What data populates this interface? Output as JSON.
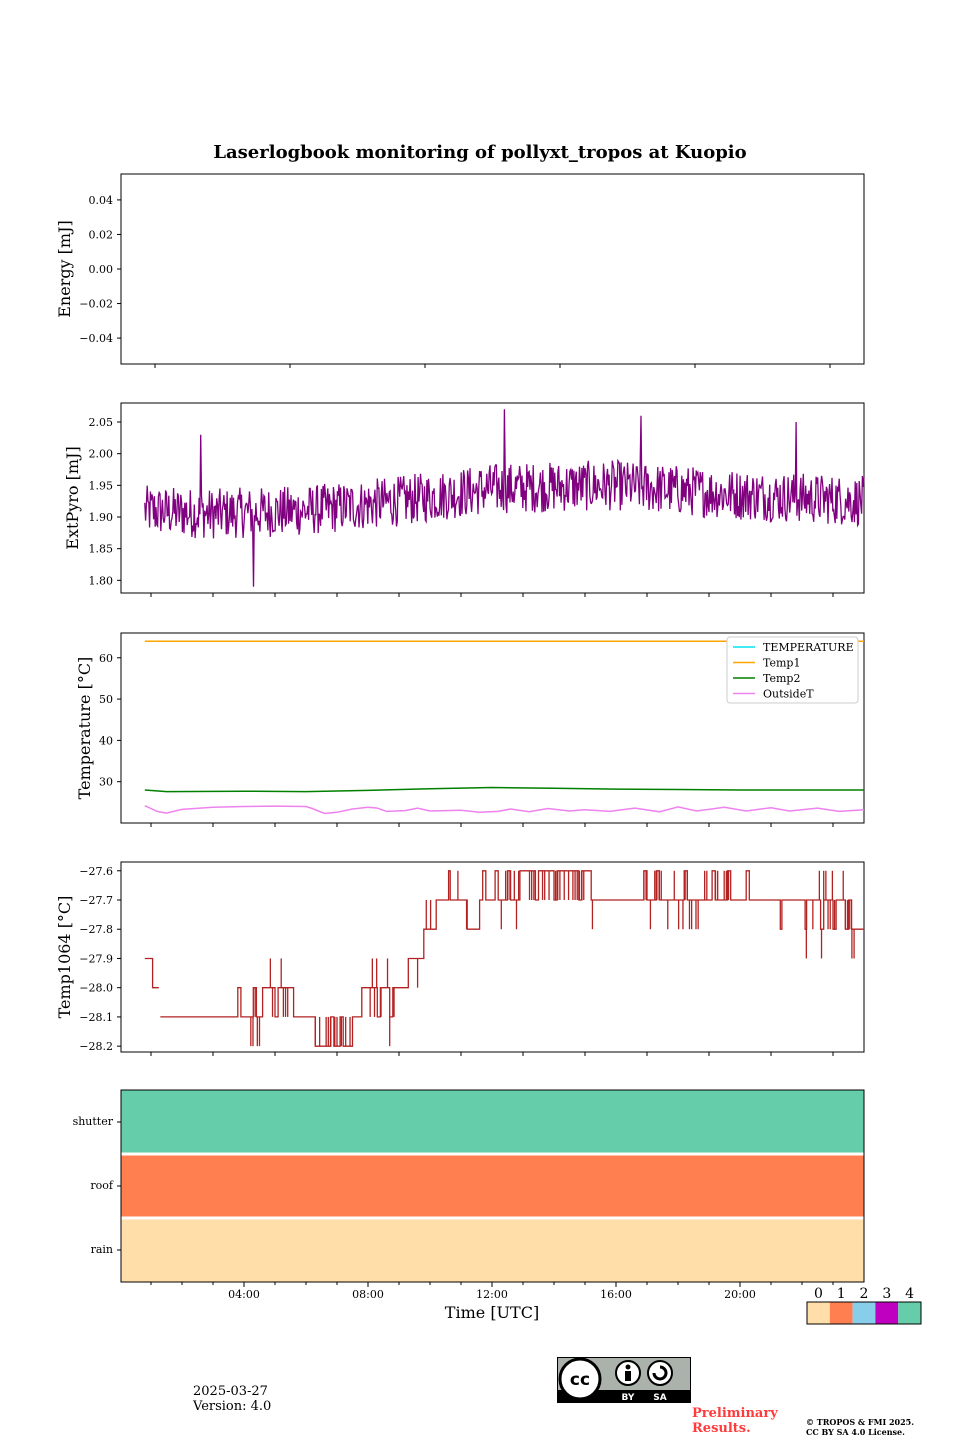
{
  "chart_data": [
    {
      "type": "line",
      "title": "Laserlogbook monitoring of pollyxt_tropos at Kuopio",
      "ylabel": "Energy [mJ]",
      "ylim": [
        -0.055,
        0.055
      ],
      "yticks": [
        -0.04,
        -0.02,
        0.0,
        0.02,
        0.04
      ],
      "yticklabels": [
        "−0.04",
        "−0.02",
        "0.00",
        "0.02",
        "0.04"
      ],
      "series": []
    },
    {
      "type": "line",
      "ylabel": "ExtPyro [mJ]",
      "ylim": [
        1.78,
        2.08
      ],
      "yticks": [
        1.8,
        1.85,
        1.9,
        1.95,
        2.0,
        2.05
      ],
      "yticklabels": [
        "1.80",
        "1.85",
        "1.90",
        "1.95",
        "2.00",
        "2.05"
      ],
      "x_range_hours": [
        0.8,
        24.0
      ],
      "series": [
        {
          "color": "#800080",
          "trend": [
            [
              0.8,
              1.91
            ],
            [
              3.0,
              1.905
            ],
            [
              6.0,
              1.91
            ],
            [
              9.0,
              1.925
            ],
            [
              12.0,
              1.945
            ],
            [
              16.0,
              1.95
            ],
            [
              20.0,
              1.935
            ],
            [
              24.0,
              1.925
            ]
          ],
          "noise": 0.04,
          "spikes": [
            [
              12.4,
              2.07
            ],
            [
              4.3,
              1.79
            ],
            [
              16.8,
              2.06
            ],
            [
              2.6,
              2.03
            ],
            [
              21.8,
              2.05
            ]
          ]
        }
      ]
    },
    {
      "type": "line",
      "ylabel": "Temperature [°C]",
      "ylim": [
        20,
        66
      ],
      "yticks": [
        30,
        40,
        50,
        60
      ],
      "yticklabels": [
        "30",
        "40",
        "50",
        "60"
      ],
      "legend": {
        "placement": "upper right",
        "entries": [
          "TEMPERATURE",
          "Temp1",
          "Temp2",
          "OutsideT"
        ]
      },
      "x_range_hours": [
        0.8,
        24.0
      ],
      "series": [
        {
          "name": "TEMPERATURE",
          "color": "#00e5ee",
          "points": []
        },
        {
          "name": "Temp1",
          "color": "#ffa500",
          "points": [
            [
              0.8,
              64
            ],
            [
              24.0,
              64
            ]
          ]
        },
        {
          "name": "Temp2",
          "color": "#008000",
          "points": [
            [
              0.8,
              28.0
            ],
            [
              1.5,
              27.6
            ],
            [
              4,
              27.7
            ],
            [
              6,
              27.6
            ],
            [
              8,
              27.9
            ],
            [
              10,
              28.3
            ],
            [
              12,
              28.6
            ],
            [
              14,
              28.4
            ],
            [
              16,
              28.2
            ],
            [
              18,
              28.1
            ],
            [
              20,
              28.0
            ],
            [
              22,
              28.0
            ],
            [
              24,
              28.0
            ]
          ]
        },
        {
          "name": "OutsideT",
          "color": "#ee82ee",
          "points": [
            [
              0.8,
              24.2
            ],
            [
              1.2,
              22.8
            ],
            [
              1.5,
              22.4
            ],
            [
              2.0,
              23.3
            ],
            [
              3.0,
              23.8
            ],
            [
              4.0,
              24.0
            ],
            [
              5.0,
              24.1
            ],
            [
              6.0,
              24.0
            ],
            [
              6.2,
              23.5
            ],
            [
              6.6,
              22.3
            ],
            [
              7.0,
              22.6
            ],
            [
              7.5,
              23.4
            ],
            [
              8.0,
              23.8
            ],
            [
              8.3,
              23.6
            ],
            [
              8.6,
              22.8
            ],
            [
              9.2,
              23.0
            ],
            [
              9.6,
              23.6
            ],
            [
              10.0,
              22.9
            ],
            [
              11.0,
              23.1
            ],
            [
              11.6,
              22.6
            ],
            [
              12.2,
              22.8
            ],
            [
              12.6,
              23.4
            ],
            [
              13.2,
              22.7
            ],
            [
              13.8,
              23.5
            ],
            [
              14.5,
              22.9
            ],
            [
              15.0,
              23.2
            ],
            [
              15.8,
              22.8
            ],
            [
              16.6,
              23.6
            ],
            [
              17.4,
              22.7
            ],
            [
              18.0,
              23.9
            ],
            [
              18.6,
              22.9
            ],
            [
              19.5,
              23.8
            ],
            [
              20.2,
              22.9
            ],
            [
              21.0,
              23.7
            ],
            [
              21.6,
              22.9
            ],
            [
              22.5,
              23.6
            ],
            [
              23.2,
              22.8
            ],
            [
              24.0,
              23.2
            ]
          ]
        }
      ]
    },
    {
      "type": "line",
      "ylabel": "Temp1064 [°C]",
      "ylim": [
        -28.22,
        -27.57
      ],
      "yticks": [
        -28.2,
        -28.1,
        -28.0,
        -27.9,
        -27.8,
        -27.7,
        -27.6
      ],
      "yticklabels": [
        "−28.2",
        "−28.1",
        "−28.0",
        "−27.9",
        "−27.8",
        "−27.7",
        "−27.6"
      ],
      "x_range_hours": [
        0.8,
        24.0
      ],
      "series": [
        {
          "color": "#b22222",
          "segments": [
            [
              [
                0.8,
                -27.9
              ],
              [
                1.05,
                -27.9
              ],
              [
                1.05,
                -28.0
              ],
              [
                1.25,
                -28.0
              ]
            ],
            [
              [
                1.3,
                -28.1
              ],
              [
                3.8,
                -28.1
              ],
              [
                3.8,
                -28.0
              ],
              [
                3.9,
                -28.0
              ],
              [
                3.9,
                -28.1
              ],
              [
                4.3,
                -28.1
              ],
              [
                4.3,
                -28.0
              ],
              [
                4.4,
                -28.0
              ],
              [
                4.4,
                -28.1
              ],
              [
                4.6,
                -28.1
              ],
              [
                4.6,
                -28.0
              ],
              [
                5.0,
                -28.0
              ],
              [
                5.0,
                -28.1
              ],
              [
                5.1,
                -28.1
              ],
              [
                5.1,
                -28.0
              ],
              [
                5.6,
                -28.0
              ],
              [
                5.6,
                -28.1
              ],
              [
                6.3,
                -28.1
              ],
              [
                6.3,
                -28.2
              ],
              [
                6.8,
                -28.2
              ],
              [
                6.8,
                -28.1
              ],
              [
                6.9,
                -28.1
              ],
              [
                6.9,
                -28.2
              ],
              [
                7.1,
                -28.2
              ],
              [
                7.1,
                -28.1
              ],
              [
                7.2,
                -28.1
              ],
              [
                7.2,
                -28.2
              ],
              [
                7.5,
                -28.2
              ],
              [
                7.5,
                -28.1
              ],
              [
                7.8,
                -28.1
              ],
              [
                7.8,
                -28.0
              ],
              [
                8.3,
                -28.0
              ],
              [
                8.3,
                -28.1
              ],
              [
                8.4,
                -28.1
              ],
              [
                8.4,
                -28.0
              ],
              [
                8.7,
                -28.0
              ],
              [
                8.7,
                -28.1
              ],
              [
                8.8,
                -28.1
              ],
              [
                8.8,
                -28.0
              ],
              [
                9.3,
                -28.0
              ],
              [
                9.3,
                -27.9
              ],
              [
                9.8,
                -27.9
              ],
              [
                9.8,
                -27.8
              ],
              [
                10.2,
                -27.8
              ],
              [
                10.2,
                -27.7
              ],
              [
                10.6,
                -27.7
              ],
              [
                10.6,
                -27.6
              ],
              [
                10.65,
                -27.6
              ],
              [
                10.65,
                -27.7
              ],
              [
                11.2,
                -27.7
              ],
              [
                11.2,
                -27.8
              ],
              [
                11.6,
                -27.8
              ],
              [
                11.6,
                -27.7
              ],
              [
                11.7,
                -27.7
              ],
              [
                11.7,
                -27.6
              ],
              [
                11.8,
                -27.6
              ],
              [
                11.8,
                -27.7
              ],
              [
                12.1,
                -27.7
              ],
              [
                12.1,
                -27.6
              ],
              [
                12.2,
                -27.6
              ],
              [
                12.2,
                -27.7
              ],
              [
                12.5,
                -27.7
              ],
              [
                12.5,
                -27.6
              ],
              [
                12.6,
                -27.6
              ],
              [
                12.6,
                -27.7
              ],
              [
                12.9,
                -27.7
              ],
              [
                12.9,
                -27.6
              ],
              [
                13.4,
                -27.6
              ],
              [
                13.4,
                -27.7
              ],
              [
                13.5,
                -27.7
              ],
              [
                13.5,
                -27.6
              ],
              [
                14.0,
                -27.6
              ],
              [
                14.0,
                -27.7
              ],
              [
                14.1,
                -27.7
              ],
              [
                14.1,
                -27.6
              ],
              [
                14.8,
                -27.6
              ],
              [
                14.8,
                -27.7
              ],
              [
                14.9,
                -27.7
              ],
              [
                14.9,
                -27.6
              ],
              [
                15.2,
                -27.6
              ],
              [
                15.2,
                -27.7
              ],
              [
                16.9,
                -27.7
              ],
              [
                16.9,
                -27.6
              ],
              [
                17.0,
                -27.6
              ],
              [
                17.0,
                -27.7
              ],
              [
                17.3,
                -27.7
              ],
              [
                17.3,
                -27.6
              ],
              [
                17.4,
                -27.6
              ],
              [
                17.4,
                -27.7
              ],
              [
                18.2,
                -27.7
              ],
              [
                18.2,
                -27.6
              ],
              [
                18.3,
                -27.6
              ],
              [
                18.3,
                -27.7
              ],
              [
                19.1,
                -27.7
              ],
              [
                19.1,
                -27.6
              ],
              [
                19.2,
                -27.6
              ],
              [
                19.2,
                -27.7
              ],
              [
                19.6,
                -27.7
              ],
              [
                19.6,
                -27.6
              ],
              [
                19.7,
                -27.6
              ],
              [
                19.7,
                -27.7
              ],
              [
                20.2,
                -27.7
              ],
              [
                20.2,
                -27.6
              ],
              [
                20.3,
                -27.6
              ],
              [
                20.3,
                -27.7
              ],
              [
                21.3,
                -27.7
              ],
              [
                21.3,
                -27.8
              ],
              [
                21.35,
                -27.8
              ],
              [
                21.35,
                -27.7
              ],
              [
                22.1,
                -27.7
              ],
              [
                22.1,
                -27.8
              ],
              [
                22.15,
                -27.8
              ],
              [
                22.15,
                -27.7
              ],
              [
                22.6,
                -27.7
              ],
              [
                22.6,
                -27.8
              ],
              [
                22.7,
                -27.8
              ],
              [
                22.7,
                -27.7
              ],
              [
                23.0,
                -27.7
              ],
              [
                23.0,
                -27.8
              ],
              [
                23.1,
                -27.8
              ],
              [
                23.1,
                -27.7
              ],
              [
                23.4,
                -27.7
              ],
              [
                23.4,
                -27.8
              ],
              [
                23.5,
                -27.8
              ],
              [
                23.5,
                -27.7
              ],
              [
                23.6,
                -27.7
              ],
              [
                23.6,
                -27.8
              ],
              [
                24.0,
                -27.8
              ]
            ]
          ],
          "jitter_ranges": [
            [
              3.8,
              5.6,
              0.1
            ],
            [
              6.3,
              7.5,
              0.1
            ],
            [
              8.0,
              8.9,
              0.1
            ],
            [
              9.6,
              10.2,
              0.1
            ],
            [
              10.9,
              11.4,
              0.1
            ],
            [
              12.3,
              15.3,
              0.1
            ],
            [
              16.9,
              19.7,
              0.1
            ],
            [
              22.0,
              23.7,
              0.1
            ]
          ]
        }
      ]
    },
    {
      "type": "heatmap",
      "xlabel": "Time [UTC]",
      "categories": [
        "shutter",
        "roof",
        "rain"
      ],
      "values": [
        4,
        1,
        0
      ],
      "xlim_hours": [
        0,
        24
      ],
      "xticks": [
        4,
        8,
        12,
        16,
        20
      ],
      "xticklabels": [
        "04:00",
        "08:00",
        "12:00",
        "16:00",
        "20:00"
      ],
      "colorbar": {
        "ticks": [
          "0",
          "1",
          "2",
          "3",
          "4"
        ],
        "colors": [
          "#ffdeaa",
          "#ff7f50",
          "#87ceeb",
          "#c000c0",
          "#66cdaa"
        ]
      }
    }
  ],
  "footer": {
    "date": "2025-03-27",
    "version": "Version: 4.0",
    "preliminary_line1": "Preliminary",
    "preliminary_line2": "Results.",
    "copyright_line1": "© TROPOS & FMI 2025.",
    "copyright_line2": "CC BY SA 4.0 License.",
    "badge_by": "BY",
    "badge_sa": "SA",
    "badge_cc": "cc"
  }
}
